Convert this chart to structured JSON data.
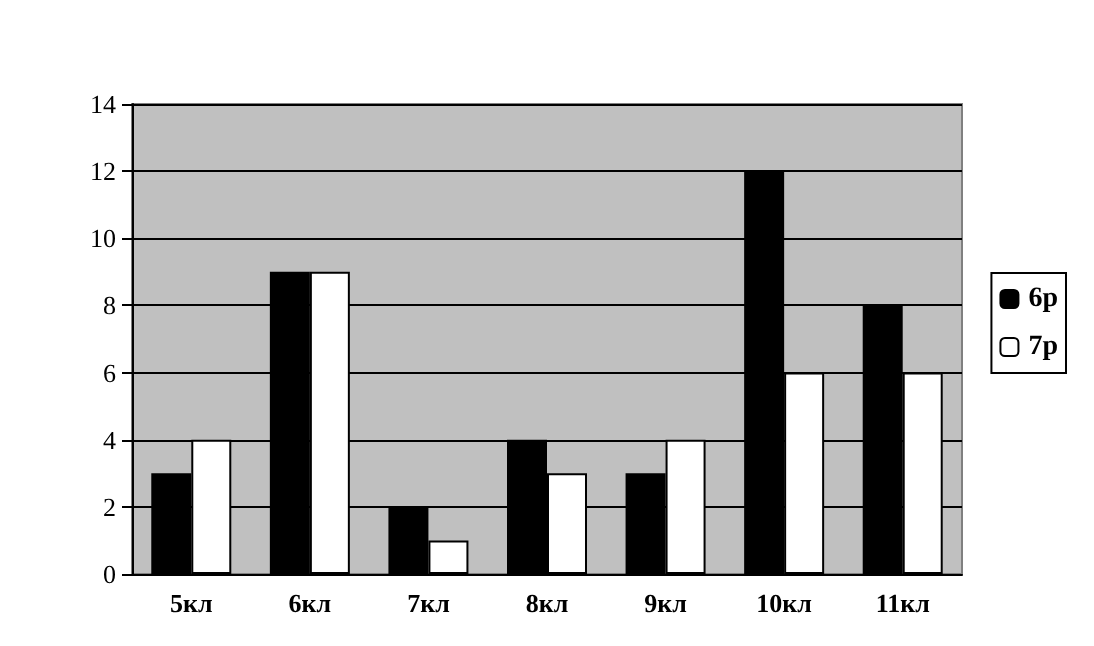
{
  "chart_data": {
    "type": "bar",
    "categories": [
      "5кл",
      "6кл",
      "7кл",
      "8кл",
      "9кл",
      "10кл",
      "11кл"
    ],
    "series": [
      {
        "name": "6р",
        "color": "#000000",
        "values": [
          3,
          9,
          2,
          4,
          3,
          12,
          8
        ]
      },
      {
        "name": "7р",
        "color": "#ffffff",
        "values": [
          4,
          9,
          1,
          3,
          4,
          6,
          6
        ]
      }
    ],
    "ylim": [
      0,
      14
    ],
    "yticks": [
      0,
      2,
      4,
      6,
      8,
      10,
      12,
      14
    ],
    "grid": "y",
    "legend": "right"
  }
}
